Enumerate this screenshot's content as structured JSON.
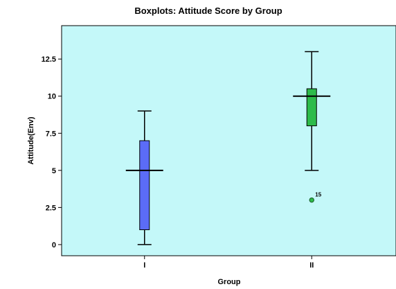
{
  "chart_data": {
    "type": "boxplot",
    "title": "Boxplots: Attitude Score by Group",
    "xlabel": "Group",
    "ylabel": "Attitude(Env)",
    "ylim": [
      -0.75,
      14.75
    ],
    "yticks": [
      "0",
      "2.5",
      "5",
      "7.5",
      "10",
      "12.5"
    ],
    "ytick_values": [
      0,
      2.5,
      5,
      7.5,
      10,
      12.5
    ],
    "grid": false,
    "plot_background": "#c4f8f9",
    "groups": [
      {
        "label": "I",
        "min": 0,
        "q1": 1,
        "median": 5,
        "q3": 7,
        "max": 9,
        "color": "#5b6cf7",
        "outliers": []
      },
      {
        "label": "II",
        "min": 5,
        "q1": 8,
        "median": 10,
        "q3": 10.5,
        "max": 13,
        "color": "#2dbb4a",
        "outliers": [
          {
            "value": 3,
            "label": "15"
          }
        ]
      }
    ]
  }
}
